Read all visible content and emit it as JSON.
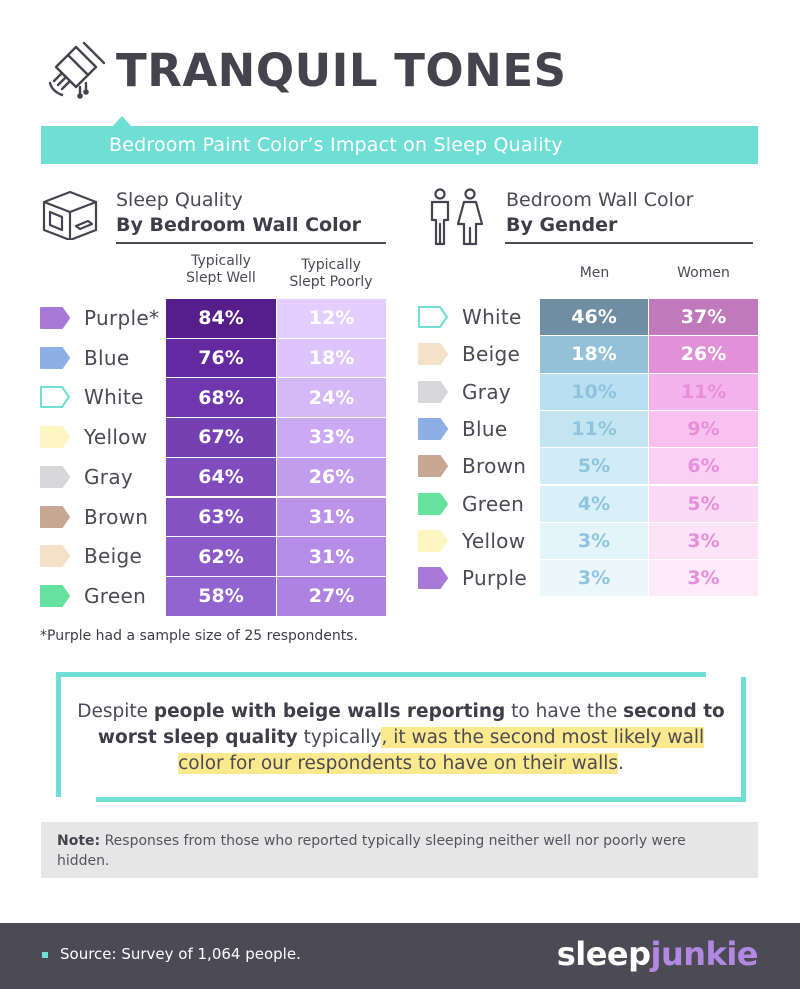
{
  "title": "TRANQUIL TONES",
  "subtitle": "Bedroom Paint Color’s Impact on Sleep Quality",
  "left_section": {
    "line1": "Sleep Quality",
    "line2": "By Bedroom Wall Color",
    "col1": [
      "Typically",
      "Slept Well"
    ],
    "col2": [
      "Typically",
      "Slept Poorly"
    ]
  },
  "right_section": {
    "line1": "Bedroom Wall Color",
    "line2": "By Gender",
    "col1": "Men",
    "col2": "Women"
  },
  "chart_data": [
    {
      "type": "table",
      "title": "Sleep Quality By Bedroom Wall Color",
      "columns": [
        "Typically Slept Well",
        "Typically Slept Poorly"
      ],
      "rows": [
        {
          "label": "Purple*",
          "color": "#a67ad6",
          "slept_well": "84%",
          "slept_poorly": "12%"
        },
        {
          "label": "Blue",
          "color": "#8eaee6",
          "slept_well": "76%",
          "slept_poorly": "18%"
        },
        {
          "label": "White",
          "color": "#ffffff",
          "slept_well": "68%",
          "slept_poorly": "24%"
        },
        {
          "label": "Yellow",
          "color": "#fdf6c3",
          "slept_well": "67%",
          "slept_poorly": "33%"
        },
        {
          "label": "Gray",
          "color": "#d7d7d9",
          "slept_well": "64%",
          "slept_poorly": "26%"
        },
        {
          "label": "Brown",
          "color": "#c7a693",
          "slept_well": "63%",
          "slept_poorly": "31%"
        },
        {
          "label": "Beige",
          "color": "#f4e1c7",
          "slept_well": "62%",
          "slept_poorly": "31%"
        },
        {
          "label": "Green",
          "color": "#67e29e",
          "slept_well": "58%",
          "slept_poorly": "27%"
        }
      ]
    },
    {
      "type": "table",
      "title": "Bedroom Wall Color By Gender",
      "columns": [
        "Men",
        "Women"
      ],
      "rows": [
        {
          "label": "White",
          "color": "#ffffff",
          "men": "46%",
          "women": "37%"
        },
        {
          "label": "Beige",
          "color": "#f4e1c7",
          "men": "18%",
          "women": "26%"
        },
        {
          "label": "Gray",
          "color": "#d7d7d9",
          "men": "10%",
          "women": "11%"
        },
        {
          "label": "Blue",
          "color": "#8eaee6",
          "men": "11%",
          "women": "9%"
        },
        {
          "label": "Brown",
          "color": "#c7a693",
          "men": "5%",
          "women": "6%"
        },
        {
          "label": "Green",
          "color": "#67e29e",
          "men": "4%",
          "women": "5%"
        },
        {
          "label": "Yellow",
          "color": "#fdf6c3",
          "men": "3%",
          "women": "3%"
        },
        {
          "label": "Purple",
          "color": "#a67ad6",
          "men": "3%",
          "women": "3%"
        }
      ]
    }
  ],
  "left_cell_colors": {
    "well": [
      "#571d8a",
      "#6429a1",
      "#6f36ad",
      "#7540b2",
      "#7f4bbd",
      "#8452c3",
      "#8a5ac8",
      "#9164cf"
    ],
    "poorly": [
      "#e3ceff",
      "#ddc4fc",
      "#d4b8f8",
      "#cba9f3",
      "#c39ded",
      "#bb93e9",
      "#b58ce6",
      "#ae82e1"
    ]
  },
  "right_cell_colors": {
    "men": [
      "#6f8ea2",
      "#93c1d7",
      "#b8e0f1",
      "#c3e5f2",
      "#d1ecf6",
      "#daf0f8",
      "#e3f4fa",
      "#ebf7fb"
    ],
    "women": [
      "#c079bb",
      "#e290d8",
      "#f4b3ec",
      "#f8c1f0",
      "#fad0f4",
      "#fbdaf6",
      "#fce3f8",
      "#fdeafa"
    ],
    "men_text": [
      "#ffffff",
      "#ffffff",
      "#8ec4de",
      "#8ec4de",
      "#8ec4de",
      "#8ec4de",
      "#8ec4de",
      "#8ec4de"
    ],
    "women_text": [
      "#ffffff",
      "#ffffff",
      "#e78fd9",
      "#e78fd9",
      "#e78fd9",
      "#e78fd9",
      "#e78fd9",
      "#e78fd9"
    ]
  },
  "footnote": "*Purple had a sample size of 25 respondents.",
  "callout": {
    "p1": "Despite ",
    "b1": "people with beige walls reporting",
    "p2": " to have the ",
    "b2": "second to worst sleep quality",
    "p3": " typically",
    "hl": ", it was the second most likely wall color for our respondents to have on their walls",
    "p4": "."
  },
  "note": {
    "label": "Note:",
    "text": " Responses from those who reported typically sleeping neither well nor poorly were hidden."
  },
  "footer": {
    "source": "Source: Survey of 1,064 people.",
    "logo_a": "sleep",
    "logo_b": "junkie"
  },
  "colors": {
    "teal": "#6fded4",
    "dark": "#4b4a55",
    "highlight": "#fbe98d"
  }
}
